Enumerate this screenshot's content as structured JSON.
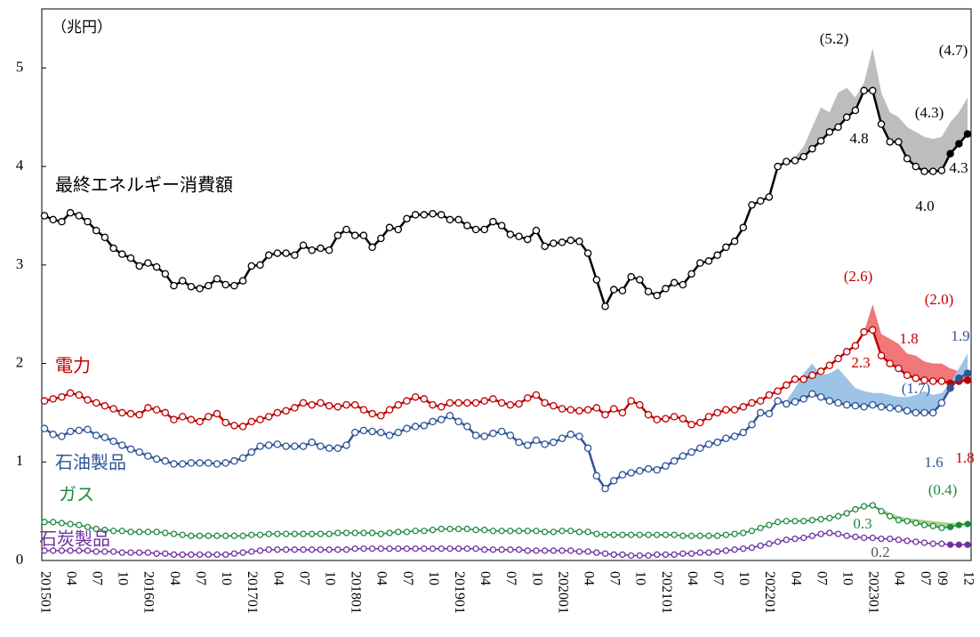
{
  "chart_data": {
    "type": "line",
    "unit_label": "（兆円）",
    "categories": [
      "201501",
      null,
      null,
      "04",
      null,
      null,
      "07",
      null,
      null,
      "10",
      null,
      null,
      "201601",
      null,
      null,
      "04",
      null,
      null,
      "07",
      null,
      null,
      "10",
      null,
      null,
      "201701",
      null,
      null,
      "04",
      null,
      null,
      "07",
      null,
      null,
      "10",
      null,
      null,
      "201801",
      null,
      null,
      "04",
      null,
      null,
      "07",
      null,
      null,
      "10",
      null,
      null,
      "201901",
      null,
      null,
      "04",
      null,
      null,
      "07",
      null,
      null,
      "10",
      null,
      null,
      "202001",
      null,
      null,
      "04",
      null,
      null,
      "07",
      null,
      null,
      "10",
      null,
      null,
      "202101",
      null,
      null,
      "04",
      null,
      null,
      "07",
      null,
      null,
      "10",
      null,
      null,
      "202201",
      null,
      null,
      "04",
      null,
      null,
      "07",
      null,
      null,
      "10",
      null,
      null,
      "202301",
      null,
      null,
      "04",
      null,
      null,
      "07",
      null,
      "09",
      null,
      null,
      "12"
    ],
    "ylim": [
      0,
      5.6
    ],
    "yticks": [
      0,
      1,
      2,
      3,
      4,
      5
    ],
    "series": [
      {
        "name": "最終エネルギー消費額",
        "color": "#000000",
        "band_color": "#bdbdbd",
        "values": [
          3.5,
          3.46,
          3.44,
          3.53,
          3.5,
          3.44,
          3.35,
          3.28,
          3.17,
          3.11,
          3.07,
          2.99,
          3.02,
          2.98,
          2.91,
          2.79,
          2.84,
          2.78,
          2.76,
          2.79,
          2.86,
          2.8,
          2.79,
          2.84,
          2.99,
          3.0,
          3.1,
          3.12,
          3.12,
          3.1,
          3.2,
          3.15,
          3.17,
          3.15,
          3.3,
          3.36,
          3.3,
          3.3,
          3.18,
          3.27,
          3.38,
          3.36,
          3.47,
          3.51,
          3.51,
          3.52,
          3.51,
          3.46,
          3.46,
          3.4,
          3.36,
          3.36,
          3.44,
          3.4,
          3.31,
          3.29,
          3.26,
          3.35,
          3.19,
          3.22,
          3.23,
          3.25,
          3.24,
          3.12,
          2.85,
          2.58,
          2.75,
          2.74,
          2.88,
          2.85,
          2.73,
          2.69,
          2.76,
          2.82,
          2.8,
          2.91,
          3.02,
          3.04,
          3.1,
          3.18,
          3.24,
          3.38,
          3.61,
          3.65,
          3.69,
          4.0,
          4.05,
          4.06,
          4.1,
          4.18,
          4.26,
          4.35,
          4.4,
          4.5,
          4.57,
          4.77,
          4.77,
          4.43,
          4.25,
          4.25,
          4.08,
          4.0,
          3.95,
          3.95,
          3.96,
          4.13,
          4.23,
          4.33
        ],
        "band": [
          null,
          null,
          null,
          null,
          null,
          null,
          null,
          null,
          null,
          null,
          null,
          null,
          null,
          null,
          null,
          null,
          null,
          null,
          null,
          null,
          null,
          null,
          null,
          null,
          null,
          null,
          null,
          null,
          null,
          null,
          null,
          null,
          null,
          null,
          null,
          null,
          null,
          null,
          null,
          null,
          null,
          null,
          null,
          null,
          null,
          null,
          null,
          null,
          null,
          null,
          null,
          null,
          null,
          null,
          null,
          null,
          null,
          null,
          null,
          null,
          null,
          null,
          null,
          null,
          null,
          null,
          null,
          null,
          null,
          null,
          null,
          null,
          null,
          null,
          null,
          null,
          null,
          null,
          null,
          null,
          null,
          null,
          null,
          null,
          3.69,
          4.0,
          4.05,
          4.1,
          4.2,
          4.4,
          4.6,
          4.55,
          4.75,
          4.8,
          4.7,
          4.85,
          5.2,
          4.75,
          4.55,
          4.5,
          4.4,
          4.35,
          4.3,
          4.28,
          4.3,
          4.45,
          4.55,
          4.7
        ]
      },
      {
        "name": "電力",
        "color": "#c00000",
        "band_color": "#f07878",
        "values": [
          1.62,
          1.64,
          1.66,
          1.7,
          1.68,
          1.63,
          1.6,
          1.57,
          1.54,
          1.5,
          1.49,
          1.48,
          1.55,
          1.53,
          1.5,
          1.43,
          1.46,
          1.43,
          1.41,
          1.46,
          1.49,
          1.4,
          1.37,
          1.36,
          1.41,
          1.43,
          1.46,
          1.5,
          1.52,
          1.55,
          1.6,
          1.58,
          1.6,
          1.57,
          1.56,
          1.58,
          1.58,
          1.53,
          1.49,
          1.47,
          1.53,
          1.58,
          1.62,
          1.66,
          1.64,
          1.58,
          1.56,
          1.6,
          1.6,
          1.6,
          1.6,
          1.62,
          1.64,
          1.6,
          1.58,
          1.59,
          1.65,
          1.68,
          1.6,
          1.57,
          1.54,
          1.53,
          1.52,
          1.53,
          1.55,
          1.48,
          1.54,
          1.5,
          1.62,
          1.58,
          1.48,
          1.43,
          1.44,
          1.46,
          1.44,
          1.38,
          1.4,
          1.46,
          1.5,
          1.53,
          1.53,
          1.56,
          1.6,
          1.62,
          1.68,
          1.72,
          1.78,
          1.84,
          1.84,
          1.88,
          1.92,
          1.98,
          2.05,
          2.12,
          2.18,
          2.32,
          2.34,
          2.08,
          2.0,
          1.95,
          1.88,
          1.85,
          1.83,
          1.82,
          1.82,
          1.8,
          1.82,
          1.83
        ],
        "band": [
          null,
          null,
          null,
          null,
          null,
          null,
          null,
          null,
          null,
          null,
          null,
          null,
          null,
          null,
          null,
          null,
          null,
          null,
          null,
          null,
          null,
          null,
          null,
          null,
          null,
          null,
          null,
          null,
          null,
          null,
          null,
          null,
          null,
          null,
          null,
          null,
          null,
          null,
          null,
          null,
          null,
          null,
          null,
          null,
          null,
          null,
          null,
          null,
          null,
          null,
          null,
          null,
          null,
          null,
          null,
          null,
          null,
          null,
          null,
          null,
          null,
          null,
          null,
          null,
          null,
          null,
          null,
          null,
          null,
          null,
          null,
          null,
          null,
          null,
          null,
          null,
          null,
          null,
          null,
          null,
          null,
          null,
          null,
          null,
          null,
          null,
          null,
          null,
          null,
          null,
          null,
          null,
          null,
          null,
          null,
          2.32,
          2.6,
          2.3,
          2.25,
          2.2,
          2.1,
          2.08,
          2.02,
          2.0,
          2.0,
          1.95,
          1.92,
          1.9
        ]
      },
      {
        "name": "石油製品",
        "color": "#2f5597",
        "band_color": "#9dc3e6",
        "values": [
          1.34,
          1.28,
          1.26,
          1.31,
          1.32,
          1.33,
          1.27,
          1.25,
          1.21,
          1.17,
          1.13,
          1.1,
          1.06,
          1.03,
          1.01,
          0.98,
          0.98,
          0.99,
          0.99,
          0.99,
          0.98,
          0.99,
          1.01,
          1.04,
          1.1,
          1.16,
          1.17,
          1.18,
          1.16,
          1.16,
          1.16,
          1.2,
          1.16,
          1.14,
          1.14,
          1.17,
          1.3,
          1.32,
          1.31,
          1.3,
          1.27,
          1.3,
          1.34,
          1.36,
          1.37,
          1.41,
          1.43,
          1.47,
          1.41,
          1.36,
          1.27,
          1.26,
          1.29,
          1.31,
          1.27,
          1.2,
          1.17,
          1.22,
          1.18,
          1.2,
          1.24,
          1.28,
          1.26,
          1.14,
          0.86,
          0.73,
          0.81,
          0.87,
          0.89,
          0.91,
          0.93,
          0.92,
          0.96,
          1.01,
          1.06,
          1.1,
          1.14,
          1.18,
          1.2,
          1.24,
          1.26,
          1.3,
          1.38,
          1.5,
          1.49,
          1.62,
          1.59,
          1.61,
          1.64,
          1.69,
          1.66,
          1.62,
          1.6,
          1.58,
          1.57,
          1.56,
          1.58,
          1.56,
          1.55,
          1.54,
          1.52,
          1.5,
          1.5,
          1.5,
          1.6,
          1.75,
          1.85,
          1.9
        ],
        "band": [
          null,
          null,
          null,
          null,
          null,
          null,
          null,
          null,
          null,
          null,
          null,
          null,
          null,
          null,
          null,
          null,
          null,
          null,
          null,
          null,
          null,
          null,
          null,
          null,
          null,
          null,
          null,
          null,
          null,
          null,
          null,
          null,
          null,
          null,
          null,
          null,
          null,
          null,
          null,
          null,
          null,
          null,
          null,
          null,
          null,
          null,
          null,
          null,
          null,
          null,
          null,
          null,
          null,
          null,
          null,
          null,
          null,
          null,
          null,
          null,
          null,
          null,
          null,
          null,
          null,
          null,
          null,
          null,
          null,
          null,
          null,
          null,
          null,
          null,
          null,
          null,
          null,
          null,
          null,
          null,
          null,
          null,
          null,
          null,
          1.49,
          1.62,
          1.62,
          1.75,
          1.9,
          2.0,
          1.88,
          1.9,
          1.95,
          1.85,
          1.75,
          1.72,
          1.7,
          1.7,
          1.68,
          1.66,
          1.66,
          1.68,
          1.72,
          1.68,
          1.7,
          1.8,
          1.95,
          2.1
        ]
      },
      {
        "name": "ガス",
        "color": "#1e8c3c",
        "band_color": "#a9d18e",
        "values": [
          0.39,
          0.39,
          0.38,
          0.37,
          0.36,
          0.34,
          0.32,
          0.31,
          0.3,
          0.3,
          0.29,
          0.29,
          0.29,
          0.29,
          0.28,
          0.27,
          0.26,
          0.25,
          0.25,
          0.25,
          0.25,
          0.25,
          0.25,
          0.25,
          0.26,
          0.26,
          0.27,
          0.27,
          0.27,
          0.27,
          0.27,
          0.27,
          0.27,
          0.27,
          0.28,
          0.28,
          0.28,
          0.28,
          0.28,
          0.27,
          0.28,
          0.29,
          0.29,
          0.3,
          0.3,
          0.31,
          0.32,
          0.32,
          0.32,
          0.32,
          0.31,
          0.31,
          0.3,
          0.3,
          0.3,
          0.3,
          0.3,
          0.3,
          0.29,
          0.29,
          0.3,
          0.3,
          0.29,
          0.29,
          0.27,
          0.26,
          0.26,
          0.26,
          0.26,
          0.26,
          0.26,
          0.26,
          0.26,
          0.26,
          0.25,
          0.25,
          0.25,
          0.25,
          0.25,
          0.26,
          0.27,
          0.28,
          0.3,
          0.33,
          0.36,
          0.39,
          0.4,
          0.4,
          0.4,
          0.41,
          0.42,
          0.43,
          0.45,
          0.48,
          0.52,
          0.55,
          0.56,
          0.5,
          0.45,
          0.41,
          0.4,
          0.38,
          0.36,
          0.35,
          0.33,
          0.34,
          0.36,
          0.37
        ],
        "band": [
          null,
          null,
          null,
          null,
          null,
          null,
          null,
          null,
          null,
          null,
          null,
          null,
          null,
          null,
          null,
          null,
          null,
          null,
          null,
          null,
          null,
          null,
          null,
          null,
          null,
          null,
          null,
          null,
          null,
          null,
          null,
          null,
          null,
          null,
          null,
          null,
          null,
          null,
          null,
          null,
          null,
          null,
          null,
          null,
          null,
          null,
          null,
          null,
          null,
          null,
          null,
          null,
          null,
          null,
          null,
          null,
          null,
          null,
          null,
          null,
          null,
          null,
          null,
          null,
          null,
          null,
          null,
          null,
          null,
          null,
          null,
          null,
          null,
          null,
          null,
          null,
          null,
          null,
          null,
          null,
          null,
          null,
          null,
          null,
          null,
          null,
          null,
          null,
          null,
          null,
          null,
          null,
          null,
          null,
          null,
          null,
          0.56,
          0.53,
          0.48,
          0.45,
          0.43,
          0.42,
          0.41,
          0.4,
          0.39,
          0.38,
          0.38,
          0.38
        ]
      },
      {
        "name": "石炭製品",
        "color": "#7030a0",
        "values": [
          0.1,
          0.1,
          0.1,
          0.1,
          0.1,
          0.1,
          0.09,
          0.09,
          0.09,
          0.08,
          0.08,
          0.08,
          0.08,
          0.07,
          0.07,
          0.06,
          0.06,
          0.06,
          0.06,
          0.06,
          0.06,
          0.06,
          0.07,
          0.08,
          0.09,
          0.1,
          0.11,
          0.11,
          0.11,
          0.11,
          0.11,
          0.11,
          0.11,
          0.11,
          0.11,
          0.11,
          0.12,
          0.12,
          0.12,
          0.12,
          0.12,
          0.12,
          0.12,
          0.12,
          0.12,
          0.12,
          0.12,
          0.12,
          0.12,
          0.12,
          0.12,
          0.11,
          0.11,
          0.11,
          0.11,
          0.11,
          0.1,
          0.1,
          0.1,
          0.1,
          0.1,
          0.1,
          0.09,
          0.09,
          0.08,
          0.07,
          0.06,
          0.06,
          0.05,
          0.05,
          0.05,
          0.06,
          0.06,
          0.06,
          0.07,
          0.07,
          0.08,
          0.08,
          0.09,
          0.1,
          0.11,
          0.12,
          0.13,
          0.15,
          0.17,
          0.19,
          0.21,
          0.22,
          0.23,
          0.25,
          0.27,
          0.28,
          0.27,
          0.25,
          0.24,
          0.23,
          0.23,
          0.22,
          0.22,
          0.21,
          0.2,
          0.19,
          0.18,
          0.17,
          0.17,
          0.16,
          0.16,
          0.16
        ]
      }
    ],
    "annotations": [
      "(5.2)",
      "(4.3)",
      "(4.7)",
      "4.8",
      "4.0",
      "4.3",
      "(2.6)",
      "(2.0)",
      "1.8",
      "2.3",
      "1.8",
      "1.9",
      "(1.7)",
      "1.6",
      "(0.4)",
      "0.3",
      "0.2"
    ]
  }
}
